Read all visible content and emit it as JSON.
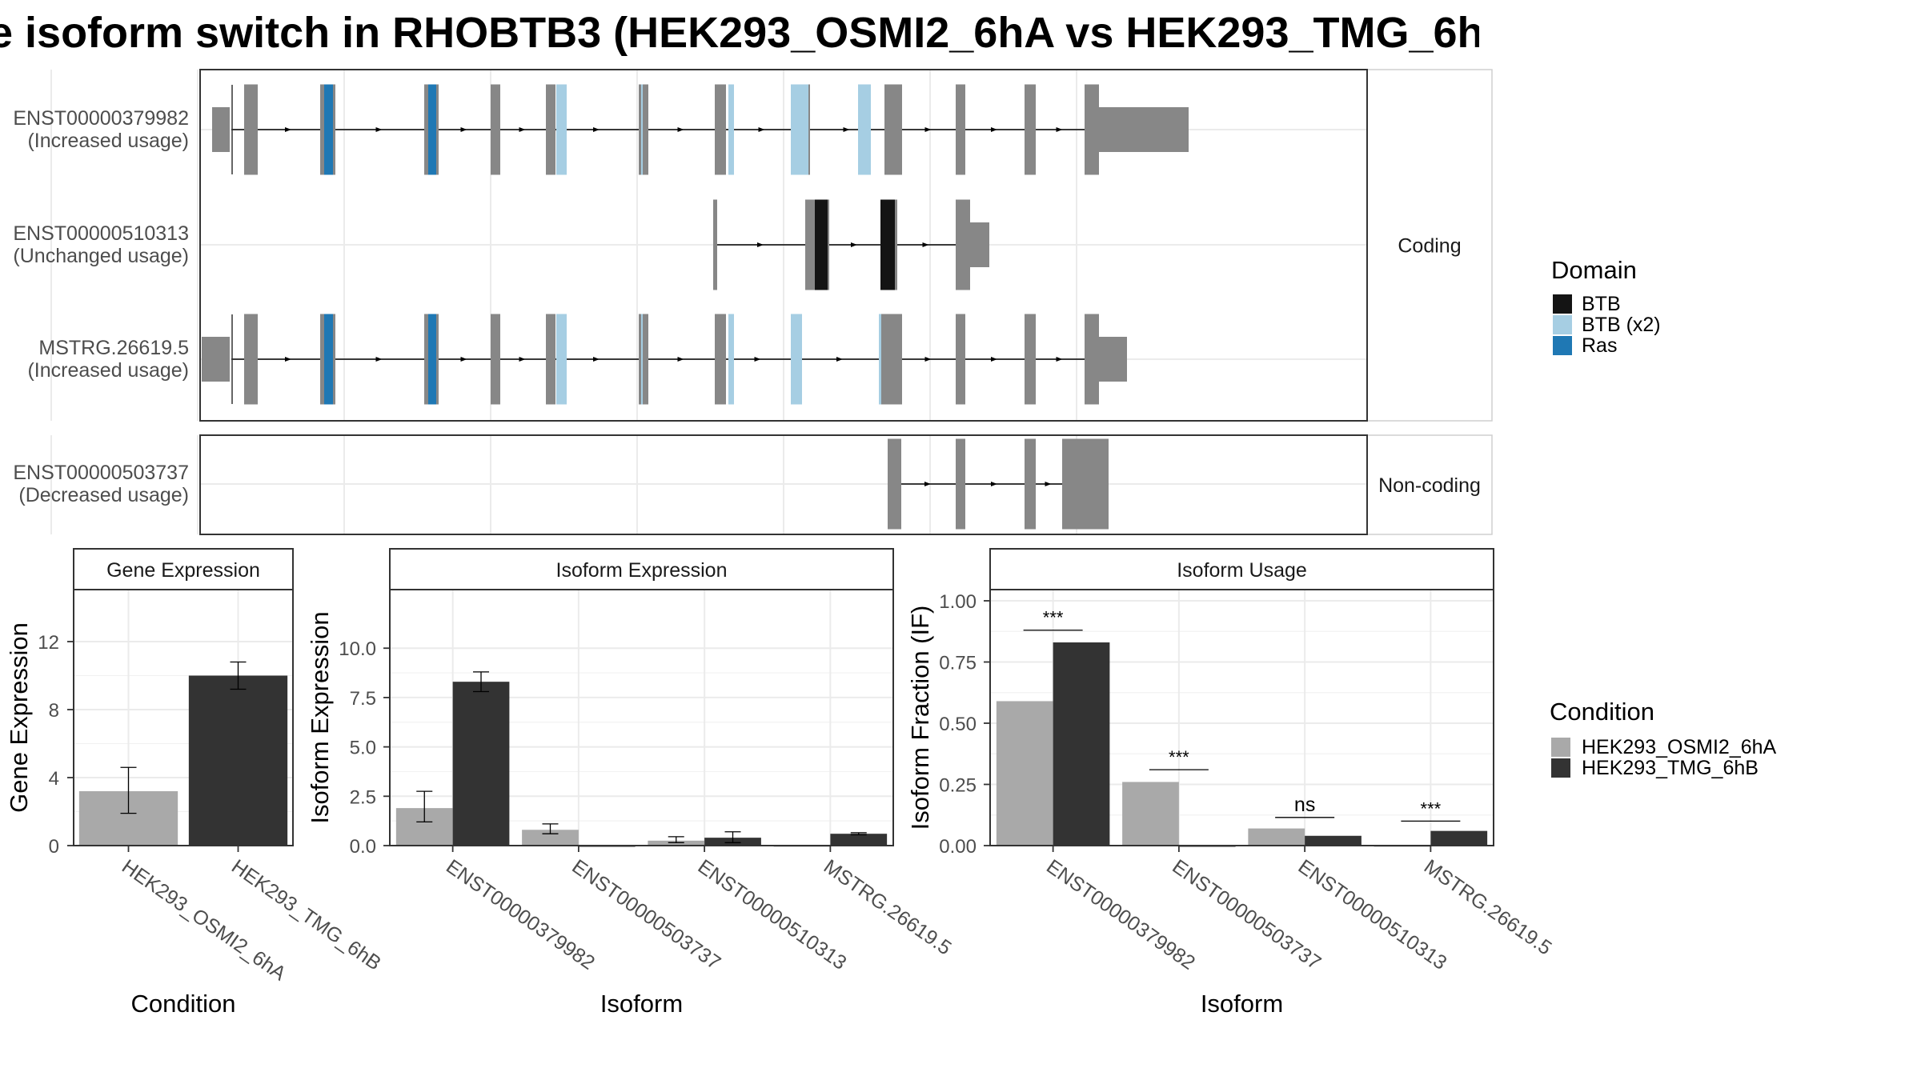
{
  "title": "e isoform switch in RHOBTB3 (HEK293_OSMI2_6hA vs HEK293_TMG_6h",
  "colors": {
    "exon": "#878787",
    "btb": "#141414",
    "btb_x2": "#a6cee3",
    "ras": "#1f78b4",
    "cond_a": "#a9a9a9",
    "cond_b": "#333333"
  },
  "transcript_panel": {
    "strips": {
      "coding": "Coding",
      "noncoding": "Non-coding"
    },
    "tracks": [
      {
        "id": "ENST00000379982",
        "usage": "(Increased usage)",
        "group": "coding",
        "exons": [
          [
            15,
            38,
            "utr"
          ],
          [
            55,
            72,
            "cds"
          ],
          [
            150,
            169,
            "cds"
          ],
          [
            280,
            298,
            "cds"
          ],
          [
            363,
            375,
            "cds"
          ],
          [
            432,
            444,
            "cds"
          ],
          [
            548,
            560,
            "cds"
          ],
          [
            643,
            657,
            "cds"
          ],
          [
            748,
            762,
            "cds"
          ],
          [
            855,
            877,
            "cds"
          ],
          [
            944,
            956,
            "cds"
          ],
          [
            1030,
            1044,
            "cds"
          ],
          [
            1105,
            1123,
            "cds"
          ],
          [
            1123,
            1235,
            "utr"
          ]
        ],
        "domains": [
          [
            155,
            166,
            "Ras"
          ],
          [
            285,
            295,
            "Ras"
          ],
          [
            445,
            458,
            "BTB (x2)"
          ],
          [
            551,
            553,
            "BTB (x2)"
          ],
          [
            660,
            667,
            "BTB (x2)"
          ],
          [
            738,
            760,
            "BTB (x2)"
          ],
          [
            822,
            838,
            "BTB (x2)"
          ]
        ],
        "tss": 38
      },
      {
        "id": "ENST00000510313",
        "usage": "(Unchanged usage)",
        "group": "coding",
        "exons": [
          [
            641,
            646,
            "cds"
          ],
          [
            756,
            768,
            "cds"
          ],
          [
            768,
            786,
            "cds"
          ],
          [
            850,
            871,
            "cds"
          ],
          [
            944,
            962,
            "cds"
          ],
          [
            962,
            986,
            "utr"
          ]
        ],
        "domains": [
          [
            768,
            784,
            "BTB"
          ],
          [
            850,
            868,
            "BTB"
          ]
        ]
      },
      {
        "id": "MSTRG.26619.5",
        "usage": "(Increased usage)",
        "group": "coding",
        "exons": [
          [
            2,
            38,
            "utr"
          ],
          [
            55,
            72,
            "cds"
          ],
          [
            150,
            169,
            "cds"
          ],
          [
            280,
            298,
            "cds"
          ],
          [
            363,
            375,
            "cds"
          ],
          [
            432,
            444,
            "cds"
          ],
          [
            548,
            560,
            "cds"
          ],
          [
            643,
            657,
            "cds"
          ],
          [
            738,
            752,
            "cds"
          ],
          [
            848,
            877,
            "cds"
          ],
          [
            944,
            956,
            "cds"
          ],
          [
            1030,
            1044,
            "cds"
          ],
          [
            1105,
            1123,
            "cds"
          ],
          [
            1123,
            1158,
            "utr"
          ]
        ],
        "domains": [
          [
            155,
            166,
            "Ras"
          ],
          [
            285,
            295,
            "Ras"
          ],
          [
            445,
            458,
            "BTB (x2)"
          ],
          [
            551,
            553,
            "BTB (x2)"
          ],
          [
            660,
            667,
            "BTB (x2)"
          ],
          [
            738,
            752,
            "BTB (x2)"
          ],
          [
            848,
            851,
            "BTB (x2)"
          ]
        ],
        "tss": 38
      },
      {
        "id": "ENST00000503737",
        "usage": "(Decreased usage)",
        "group": "noncoding",
        "exons": [
          [
            859,
            876,
            "nc"
          ],
          [
            944,
            956,
            "nc"
          ],
          [
            1030,
            1044,
            "nc"
          ],
          [
            1077,
            1079,
            "nc"
          ],
          [
            1079,
            1135,
            "nc"
          ]
        ],
        "domains": []
      }
    ]
  },
  "domain_legend": {
    "title": "Domain",
    "items": [
      {
        "label": "BTB",
        "color": "#141414"
      },
      {
        "label": "BTB (x2)",
        "color": "#a6cee3"
      },
      {
        "label": "Ras",
        "color": "#1f78b4"
      }
    ]
  },
  "condition_legend": {
    "title": "Condition",
    "items": [
      {
        "label": "HEK293_OSMI2_6hA",
        "color": "#a9a9a9"
      },
      {
        "label": "HEK293_TMG_6hB",
        "color": "#333333"
      }
    ]
  },
  "chart_data": [
    {
      "type": "bar",
      "title": "Gene Expression",
      "xlabel": "Condition",
      "ylabel": "Gene Expression",
      "ylim": [
        0,
        14.4
      ],
      "yticks": [
        0,
        4,
        8,
        12
      ],
      "yticklabels": [
        "0",
        "4",
        "8",
        "12"
      ],
      "categories": [
        "HEK293_OSMI2_6hA",
        "HEK293_TMG_6hB"
      ],
      "values": [
        3.2,
        10.0
      ],
      "errors": [
        [
          1.9,
          4.6
        ],
        [
          9.2,
          10.8
        ]
      ]
    },
    {
      "type": "bar",
      "title": "Isoform Expression",
      "xlabel": "Isoform",
      "ylabel": "Isoform Expression",
      "ylim": [
        0,
        12.4
      ],
      "yticks": [
        0,
        2.5,
        5,
        7.5,
        10
      ],
      "yticklabels": [
        "0.0",
        "2.5",
        "5.0",
        "7.5",
        "10.0"
      ],
      "categories": [
        "ENST00000379982",
        "ENST00000503737",
        "ENST00000510313",
        "MSTRG.26619.5"
      ],
      "series": [
        {
          "name": "HEK293_OSMI2_6hA",
          "values": [
            1.9,
            0.8,
            0.25,
            0.0
          ],
          "errors": [
            [
              1.2,
              2.75
            ],
            [
              0.6,
              1.1
            ],
            [
              0.15,
              0.45
            ],
            [
              0.0,
              0.0
            ]
          ]
        },
        {
          "name": "HEK293_TMG_6hB",
          "values": [
            8.3,
            0.0,
            0.4,
            0.6
          ],
          "errors": [
            [
              7.8,
              8.8
            ],
            [
              0.0,
              0.0
            ],
            [
              0.15,
              0.7
            ],
            [
              0.55,
              0.65
            ]
          ]
        }
      ]
    },
    {
      "type": "bar",
      "title": "Isoform Usage",
      "xlabel": "Isoform",
      "ylabel": "Isoform Fraction (IF)",
      "ylim": [
        0,
        1.0
      ],
      "yticks": [
        0,
        0.25,
        0.5,
        0.75,
        1.0
      ],
      "yticklabels": [
        "0.00",
        "0.25",
        "0.50",
        "0.75",
        "1.00"
      ],
      "categories": [
        "ENST00000379982",
        "ENST00000503737",
        "ENST00000510313",
        "MSTRG.26619.5"
      ],
      "series": [
        {
          "name": "HEK293_OSMI2_6hA",
          "values": [
            0.59,
            0.26,
            0.07,
            0.0
          ]
        },
        {
          "name": "HEK293_TMG_6hB",
          "values": [
            0.83,
            0.0,
            0.04,
            0.06
          ]
        }
      ],
      "significance": [
        {
          "label": "***",
          "y": 0.88
        },
        {
          "label": "***",
          "y": 0.31
        },
        {
          "label": "ns",
          "y": 0.115
        },
        {
          "label": "***",
          "y": 0.1
        }
      ]
    }
  ]
}
